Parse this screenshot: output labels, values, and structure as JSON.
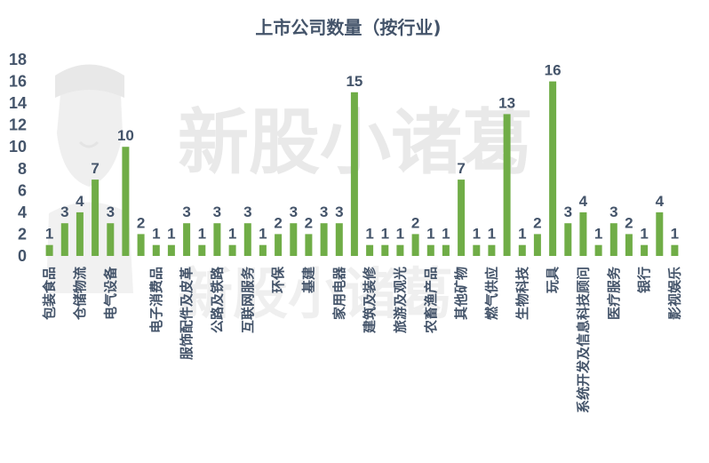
{
  "watermark": {
    "text": "新股小诸葛"
  },
  "chart_data": {
    "type": "bar",
    "title": "上市公司数量（按行业)",
    "xlabel": "",
    "ylabel": "",
    "ylim": [
      0,
      18
    ],
    "yticks": [
      0,
      2,
      4,
      6,
      8,
      10,
      12,
      14,
      16,
      18
    ],
    "grid": false,
    "legend": "none",
    "bar_color": "#70ad47",
    "categories": [
      "包装食品",
      "",
      "仓储物流",
      "",
      "电气设备",
      "",
      "",
      "电子消费品",
      "",
      "服饰配件及皮革",
      "",
      "公路及铁路",
      "",
      "互联网服务",
      "",
      "环保",
      "",
      "基建",
      "",
      "家用电器",
      "",
      "建筑及装修",
      "",
      "旅游及观光",
      "",
      "农畜渔产品",
      "",
      "其他矿物",
      "",
      "燃气供应",
      "",
      "生物科技",
      "",
      "玩具",
      "",
      "系统开发及信息科技顾问",
      "",
      "医疗服务",
      "",
      "银行",
      "",
      "影视娱乐"
    ],
    "values": [
      1,
      3,
      4,
      7,
      3,
      10,
      2,
      1,
      1,
      3,
      1,
      3,
      1,
      3,
      1,
      2,
      3,
      2,
      3,
      3,
      15,
      1,
      1,
      1,
      2,
      1,
      1,
      7,
      1,
      1,
      13,
      1,
      2,
      16,
      3,
      4,
      1,
      3,
      2,
      1,
      4,
      1
    ]
  }
}
